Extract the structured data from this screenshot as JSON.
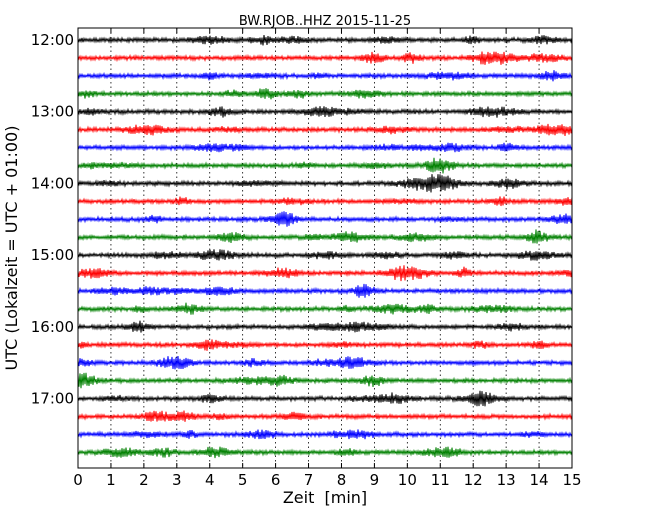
{
  "chart_data": {
    "type": "line",
    "title": "BW.RJOB..HHZ 2015-11-25",
    "xlabel": "Zeit  [min]",
    "ylabel": "UTC (Lokalzeit = UTC + 01:00)",
    "xlim": [
      0,
      15
    ],
    "x_ticks": [
      "0",
      "1",
      "2",
      "3",
      "4",
      "5",
      "6",
      "7",
      "8",
      "9",
      "10",
      "11",
      "12",
      "13",
      "14",
      "15"
    ],
    "y_tick_labels": [
      "12:00",
      "13:00",
      "14:00",
      "15:00",
      "16:00",
      "17:00"
    ],
    "y_tick_interval_minutes": 60,
    "trace_interval_minutes": 15,
    "start_time": "12:00",
    "trace_count": 24,
    "trace_colors": [
      "#000000",
      "#ff0000",
      "#0000ff",
      "#008000"
    ],
    "grid": {
      "x": "dotted",
      "y": "none"
    }
  }
}
